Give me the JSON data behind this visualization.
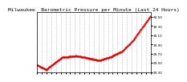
{
  "title": "Milwaukee  Barometric Pressure per Minute (Last 24 Hours)",
  "bg_color": "#ffffff",
  "plot_bg_color": "#ffffff",
  "line_color": "#dd0000",
  "grid_color": "#aaaaaa",
  "tick_color": "#000000",
  "ylabel": "",
  "xlabel": "",
  "ylim": [
    29.3,
    30.6
  ],
  "num_points": 1440,
  "y_ticks": [
    29.3,
    29.5,
    29.7,
    29.9,
    30.1,
    30.3,
    30.5
  ],
  "title_fontsize": 4.5,
  "tick_fontsize": 3.0
}
